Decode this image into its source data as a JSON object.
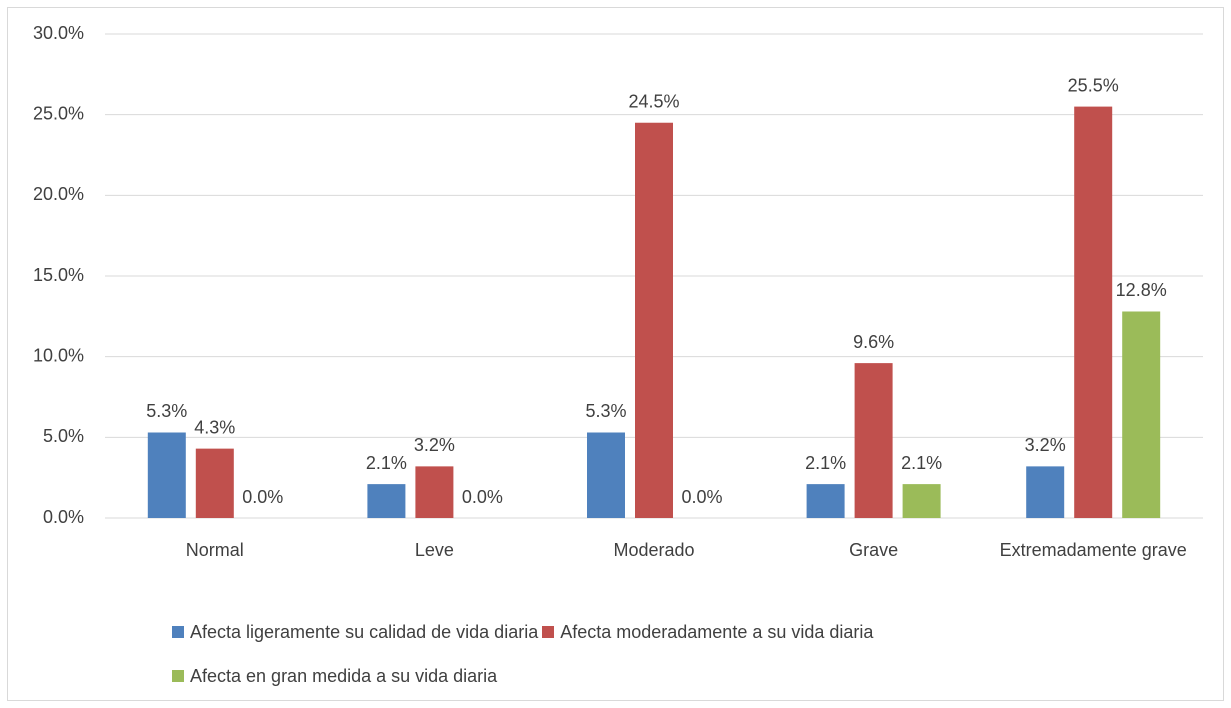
{
  "chart_data": {
    "type": "bar",
    "categories": [
      "Normal",
      "Leve",
      "Moderado",
      "Grave",
      "Extremadamente grave"
    ],
    "series": [
      {
        "name": "Afecta ligeramente su calidad de vida diaria",
        "color": "#4f81bd",
        "values": [
          5.3,
          2.1,
          5.3,
          2.1,
          3.2
        ],
        "value_labels": [
          "5.3%",
          "2.1%",
          "5.3%",
          "2.1%",
          "3.2%"
        ]
      },
      {
        "name": "Afecta moderadamente a su vida diaria",
        "color": "#c0504d",
        "values": [
          4.3,
          3.2,
          24.5,
          9.6,
          25.5
        ],
        "value_labels": [
          "4.3%",
          "3.2%",
          "24.5%",
          "9.6%",
          "25.5%"
        ]
      },
      {
        "name": "Afecta en gran medida a su vida diaria",
        "color": "#9bbb59",
        "values": [
          0,
          0,
          0,
          2.1,
          12.8
        ],
        "value_labels": [
          "0.0%",
          "0.0%",
          "0.0%",
          "2.1%",
          "12.8%"
        ]
      }
    ],
    "ylim": [
      0,
      30
    ],
    "yticks": [
      {
        "value": 0,
        "label": "0.0%"
      },
      {
        "value": 5,
        "label": "5.0%"
      },
      {
        "value": 10,
        "label": "10.0%"
      },
      {
        "value": 15,
        "label": "15.0%"
      },
      {
        "value": 20,
        "label": "20.0%"
      },
      {
        "value": 25,
        "label": "25.0%"
      },
      {
        "value": 30,
        "label": "30.0%"
      }
    ],
    "grid": true,
    "legend": "bottom"
  }
}
